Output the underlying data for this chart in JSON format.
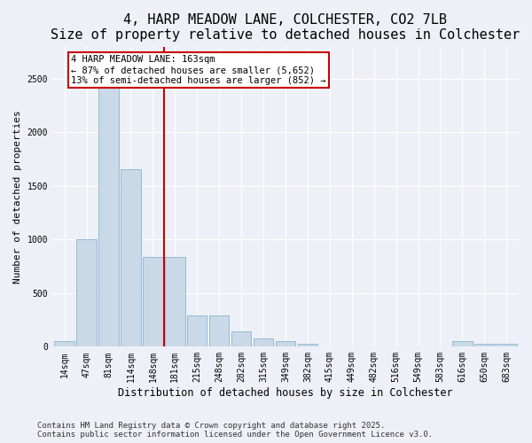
{
  "title": "4, HARP MEADOW LANE, COLCHESTER, CO2 7LB",
  "subtitle": "Size of property relative to detached houses in Colchester",
  "xlabel": "Distribution of detached houses by size in Colchester",
  "ylabel": "Number of detached properties",
  "categories": [
    "14sqm",
    "47sqm",
    "81sqm",
    "114sqm",
    "148sqm",
    "181sqm",
    "215sqm",
    "248sqm",
    "282sqm",
    "315sqm",
    "349sqm",
    "382sqm",
    "415sqm",
    "449sqm",
    "482sqm",
    "516sqm",
    "549sqm",
    "583sqm",
    "616sqm",
    "650sqm",
    "683sqm"
  ],
  "values": [
    55,
    1000,
    2480,
    1660,
    840,
    840,
    290,
    290,
    145,
    80,
    55,
    30,
    0,
    0,
    0,
    0,
    0,
    0,
    55,
    30,
    30
  ],
  "bar_color": "#c9d9e8",
  "bar_edgecolor": "#7aaac8",
  "vline_color": "#cc0000",
  "annotation_text": "4 HARP MEADOW LANE: 163sqm\n← 87% of detached houses are smaller (5,652)\n13% of semi-detached houses are larger (852) →",
  "annotation_box_facecolor": "#ffffff",
  "annotation_box_edgecolor": "#cc0000",
  "ylim": [
    0,
    2800
  ],
  "yticks": [
    0,
    500,
    1000,
    1500,
    2000,
    2500
  ],
  "footer1": "Contains HM Land Registry data © Crown copyright and database right 2025.",
  "footer2": "Contains public sector information licensed under the Open Government Licence v3.0.",
  "bg_color": "#edf1f7",
  "plot_bg_color": "#edf1f7",
  "title_fontsize": 11,
  "subtitle_fontsize": 9.5,
  "tick_fontsize": 7,
  "ylabel_fontsize": 8,
  "xlabel_fontsize": 8.5,
  "footer_fontsize": 6.5,
  "annotation_fontsize": 7.5
}
